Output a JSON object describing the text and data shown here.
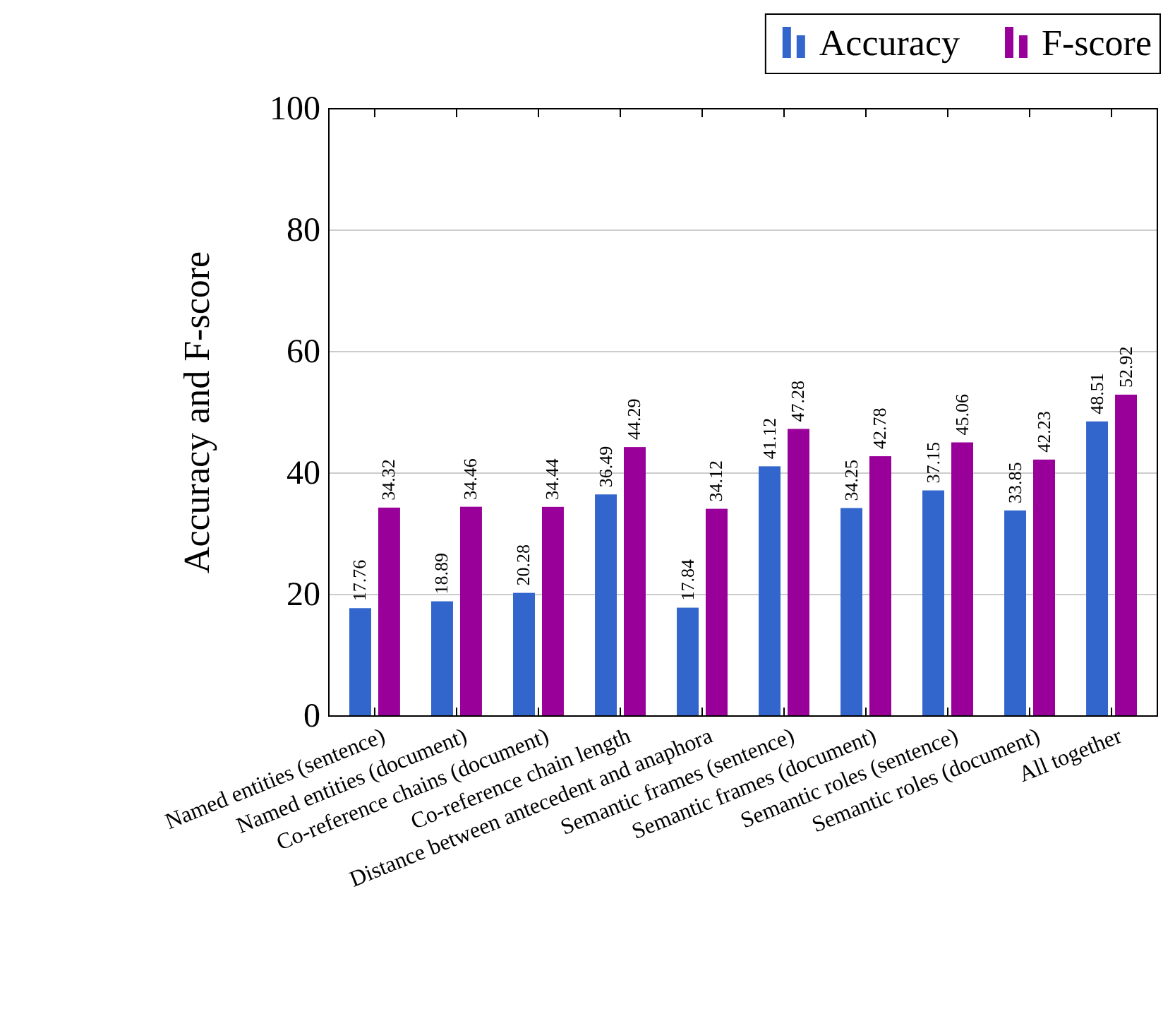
{
  "chart_data": {
    "type": "bar",
    "ylabel": "Accuracy and F-score",
    "categories": [
      "Named entities (sentence)",
      "Named entities (document)",
      "Co-reference chains (document)",
      "Co-reference chain length",
      "Distance between antecedent and anaphora",
      "Semantic frames (sentence)",
      "Semantic frames (document)",
      "Semantic roles (sentence)",
      "Semantic roles (document)",
      "All together"
    ],
    "series": [
      {
        "name": "Accuracy",
        "color": "#3366cc",
        "values": [
          17.76,
          18.89,
          20.28,
          36.49,
          17.84,
          41.12,
          34.25,
          37.15,
          33.85,
          48.51
        ]
      },
      {
        "name": "F-score",
        "color": "#990099",
        "values": [
          34.32,
          34.46,
          34.44,
          44.29,
          34.12,
          47.28,
          42.78,
          45.06,
          42.23,
          52.92
        ]
      }
    ],
    "ylim": [
      0,
      100
    ],
    "yticks": [
      0,
      20,
      40,
      60,
      80,
      100
    ],
    "grid": "y",
    "legend": "top right",
    "data_labels": true
  }
}
